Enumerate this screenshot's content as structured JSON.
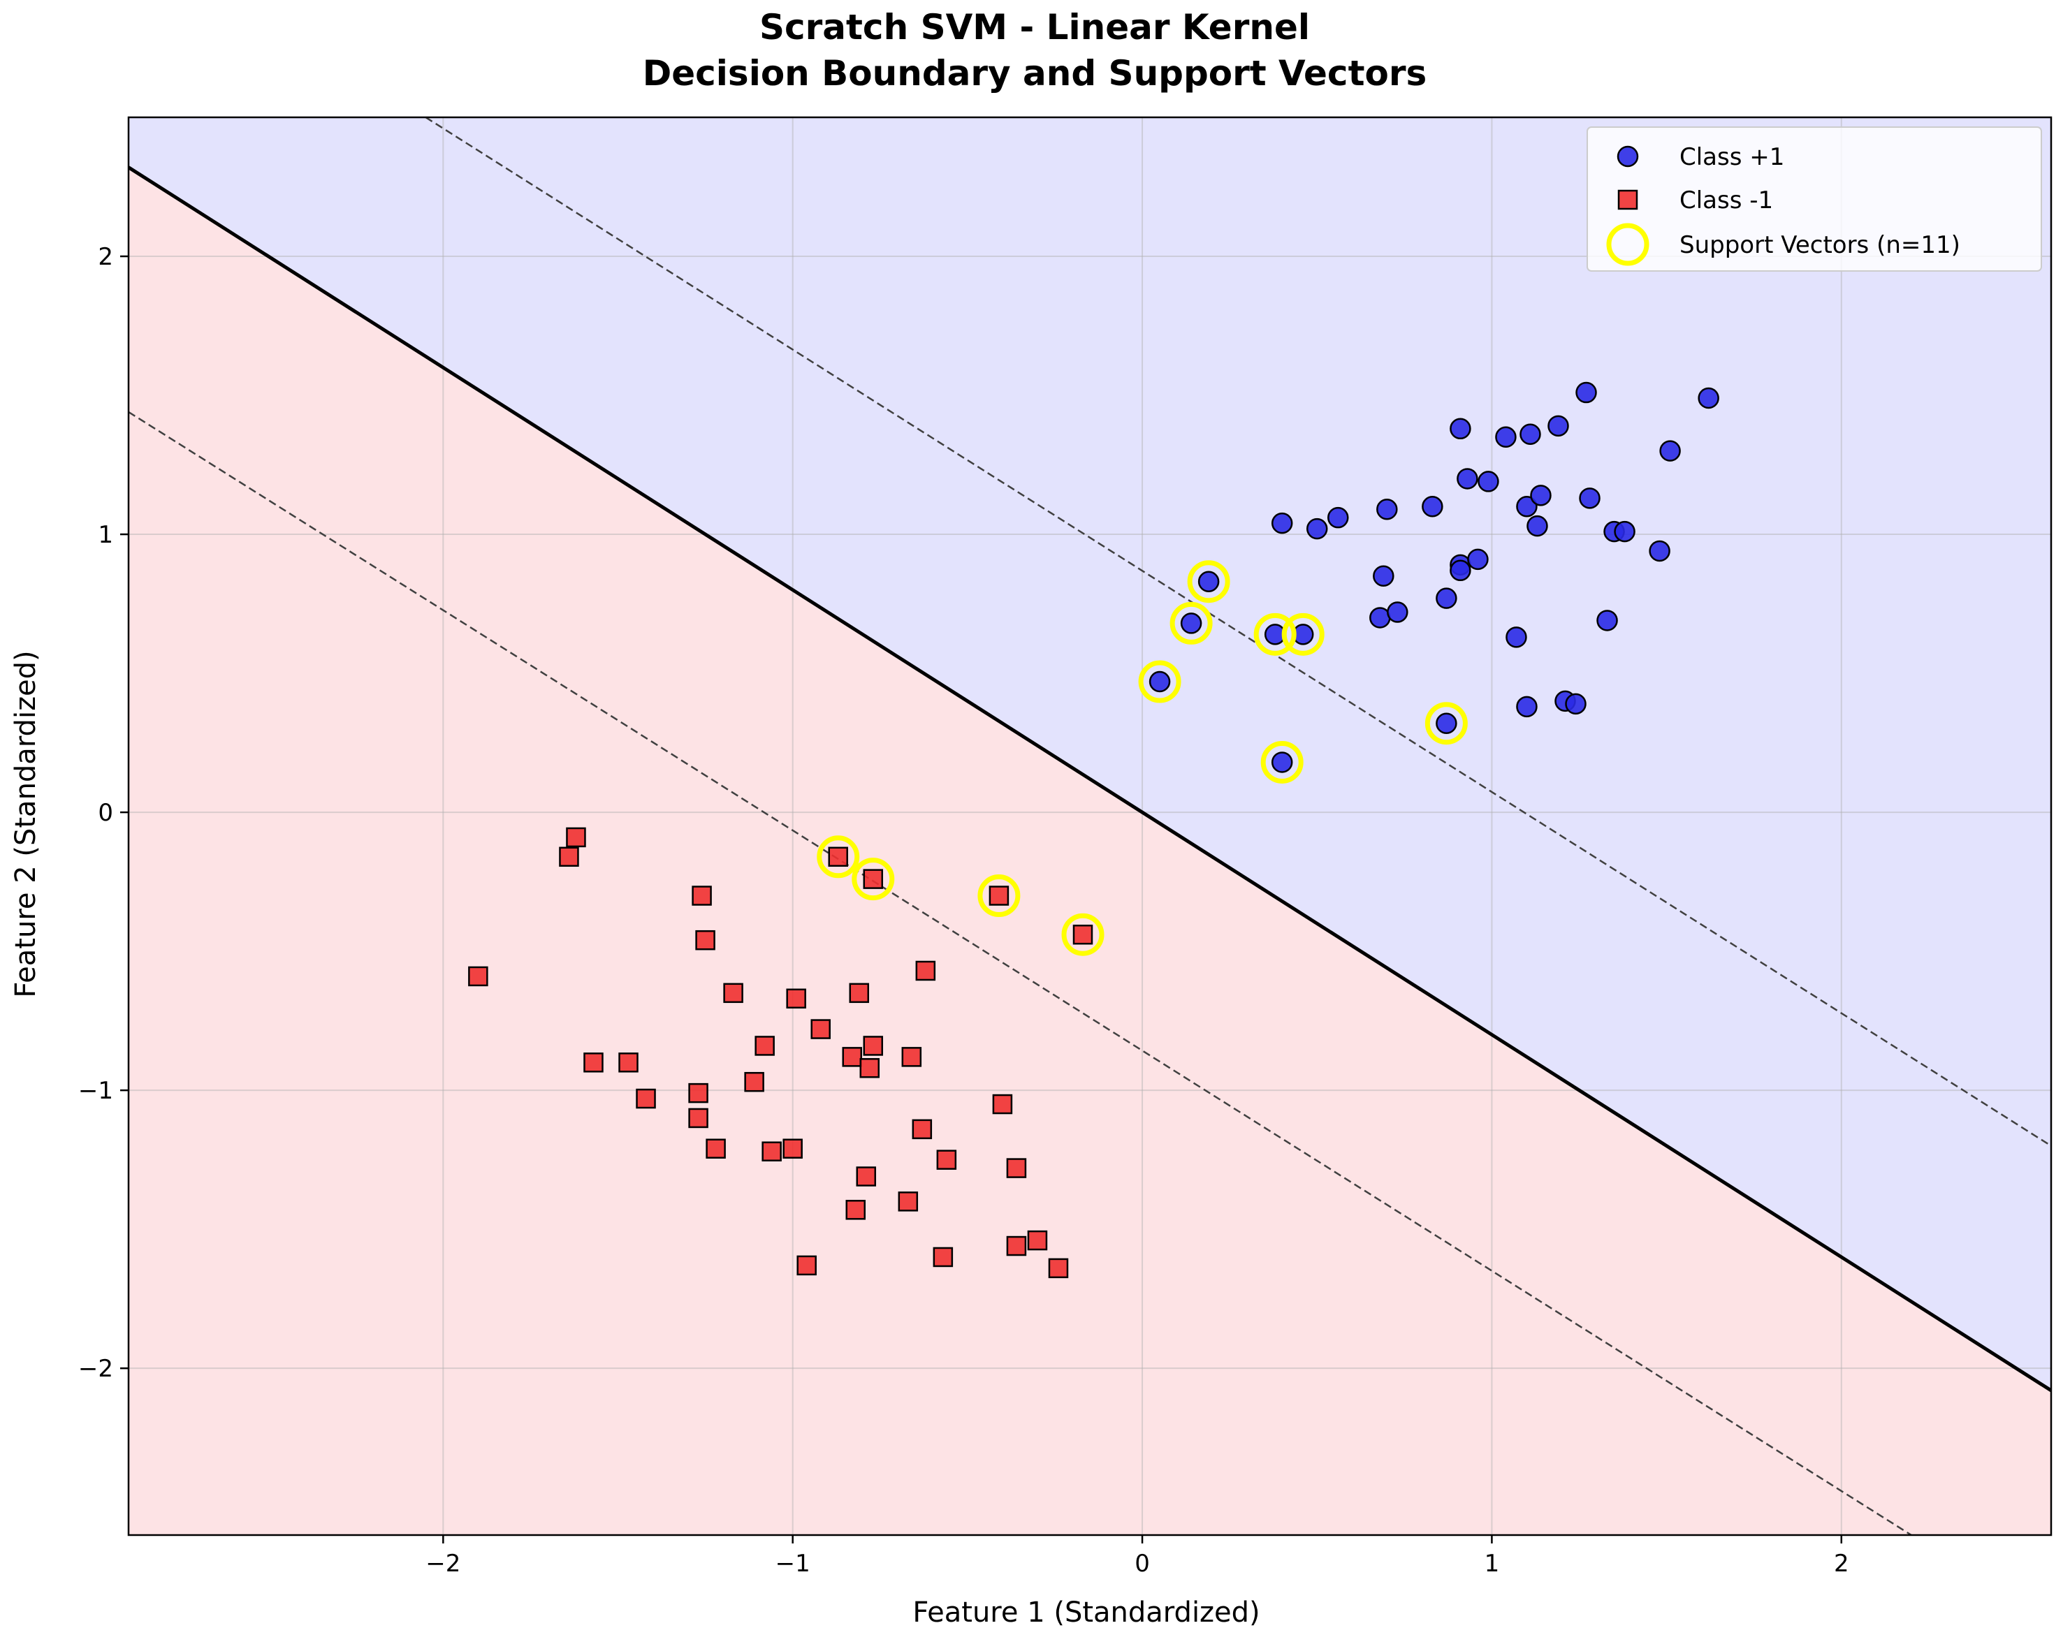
{
  "chart_data": {
    "type": "scatter",
    "title_lines": [
      "Scratch SVM - Linear Kernel",
      "Decision Boundary and Support Vectors"
    ],
    "xlabel": "Feature 1 (Standardized)",
    "ylabel": "Feature 2 (Standardized)",
    "xlim": [
      -2.9,
      2.6
    ],
    "ylim": [
      -2.6,
      2.5
    ],
    "xticks": [
      -2,
      -1,
      0,
      1,
      2
    ],
    "yticks": [
      -2,
      -1,
      0,
      1,
      2
    ],
    "xtick_labels": [
      "−2",
      "−1",
      "0",
      "1",
      "2"
    ],
    "ytick_labels": [
      "−2",
      "−1",
      "0",
      "1",
      "2"
    ],
    "grid": true,
    "legend_position": "top-right",
    "colors": {
      "positive_region": "#e3e3fd",
      "negative_region": "#fde3e5",
      "class_pos": "#2a2ae6",
      "class_neg": "#f03030",
      "support_vector": "#ffff00",
      "boundary": "#000000",
      "margin": "#404040"
    },
    "decision_boundary": {
      "points": [
        [
          -2.9,
          2.32
        ],
        [
          2.6,
          -2.08
        ]
      ]
    },
    "margin_upper": {
      "points": [
        [
          -2.05,
          2.5
        ],
        [
          2.6,
          -1.2
        ]
      ]
    },
    "margin_lower": {
      "points": [
        [
          -2.9,
          1.44
        ],
        [
          2.2,
          -2.6
        ]
      ]
    },
    "series": [
      {
        "name": "Class +1",
        "marker": "circle",
        "points": [
          [
            0.05,
            0.47
          ],
          [
            0.14,
            0.68
          ],
          [
            0.19,
            0.83
          ],
          [
            0.38,
            0.64
          ],
          [
            0.46,
            0.64
          ],
          [
            0.4,
            0.18
          ],
          [
            0.87,
            0.32
          ],
          [
            0.4,
            1.04
          ],
          [
            0.5,
            1.02
          ],
          [
            0.56,
            1.06
          ],
          [
            0.68,
            0.7
          ],
          [
            0.69,
            0.85
          ],
          [
            0.7,
            1.09
          ],
          [
            0.73,
            0.72
          ],
          [
            0.83,
            1.1
          ],
          [
            0.87,
            0.77
          ],
          [
            0.91,
            0.89
          ],
          [
            0.91,
            0.87
          ],
          [
            0.91,
            1.38
          ],
          [
            0.93,
            1.2
          ],
          [
            0.96,
            0.91
          ],
          [
            0.99,
            1.19
          ],
          [
            1.04,
            1.35
          ],
          [
            1.07,
            0.63
          ],
          [
            1.1,
            1.1
          ],
          [
            1.1,
            0.38
          ],
          [
            1.11,
            1.36
          ],
          [
            1.13,
            1.03
          ],
          [
            1.14,
            1.14
          ],
          [
            1.19,
            1.39
          ],
          [
            1.21,
            0.4
          ],
          [
            1.24,
            0.39
          ],
          [
            1.27,
            1.51
          ],
          [
            1.28,
            1.13
          ],
          [
            1.33,
            0.69
          ],
          [
            1.35,
            1.01
          ],
          [
            1.38,
            1.01
          ],
          [
            1.48,
            0.94
          ],
          [
            1.51,
            1.3
          ],
          [
            1.62,
            1.49
          ]
        ]
      },
      {
        "name": "Class -1",
        "marker": "square",
        "points": [
          [
            -0.87,
            -0.16
          ],
          [
            -0.77,
            -0.24
          ],
          [
            -0.41,
            -0.3
          ],
          [
            -0.17,
            -0.44
          ],
          [
            -1.62,
            -0.09
          ],
          [
            -1.64,
            -0.16
          ],
          [
            -1.26,
            -0.3
          ],
          [
            -1.25,
            -0.46
          ],
          [
            -1.9,
            -0.59
          ],
          [
            -1.17,
            -0.65
          ],
          [
            -0.99,
            -0.67
          ],
          [
            -0.81,
            -0.65
          ],
          [
            -0.62,
            -0.57
          ],
          [
            -0.92,
            -0.78
          ],
          [
            -1.08,
            -0.84
          ],
          [
            -1.57,
            -0.9
          ],
          [
            -1.47,
            -0.9
          ],
          [
            -0.83,
            -0.88
          ],
          [
            -0.78,
            -0.92
          ],
          [
            -0.77,
            -0.84
          ],
          [
            -0.66,
            -0.88
          ],
          [
            -1.11,
            -0.97
          ],
          [
            -1.42,
            -1.03
          ],
          [
            -1.27,
            -1.01
          ],
          [
            -1.27,
            -1.1
          ],
          [
            -0.4,
            -1.05
          ],
          [
            -0.63,
            -1.14
          ],
          [
            -1.22,
            -1.21
          ],
          [
            -1.06,
            -1.22
          ],
          [
            -1.0,
            -1.21
          ],
          [
            -0.56,
            -1.25
          ],
          [
            -0.36,
            -1.28
          ],
          [
            -0.79,
            -1.31
          ],
          [
            -0.67,
            -1.4
          ],
          [
            -0.82,
            -1.43
          ],
          [
            -0.36,
            -1.56
          ],
          [
            -0.3,
            -1.54
          ],
          [
            -0.57,
            -1.6
          ],
          [
            -0.96,
            -1.63
          ],
          [
            -0.24,
            -1.64
          ]
        ]
      },
      {
        "name": "Support Vectors (n=11)",
        "marker": "ring",
        "points": [
          [
            0.05,
            0.47
          ],
          [
            0.14,
            0.68
          ],
          [
            0.19,
            0.83
          ],
          [
            0.38,
            0.64
          ],
          [
            0.46,
            0.64
          ],
          [
            0.4,
            0.18
          ],
          [
            0.87,
            0.32
          ],
          [
            -0.87,
            -0.16
          ],
          [
            -0.77,
            -0.24
          ],
          [
            -0.41,
            -0.3
          ],
          [
            -0.17,
            -0.44
          ]
        ]
      }
    ]
  }
}
